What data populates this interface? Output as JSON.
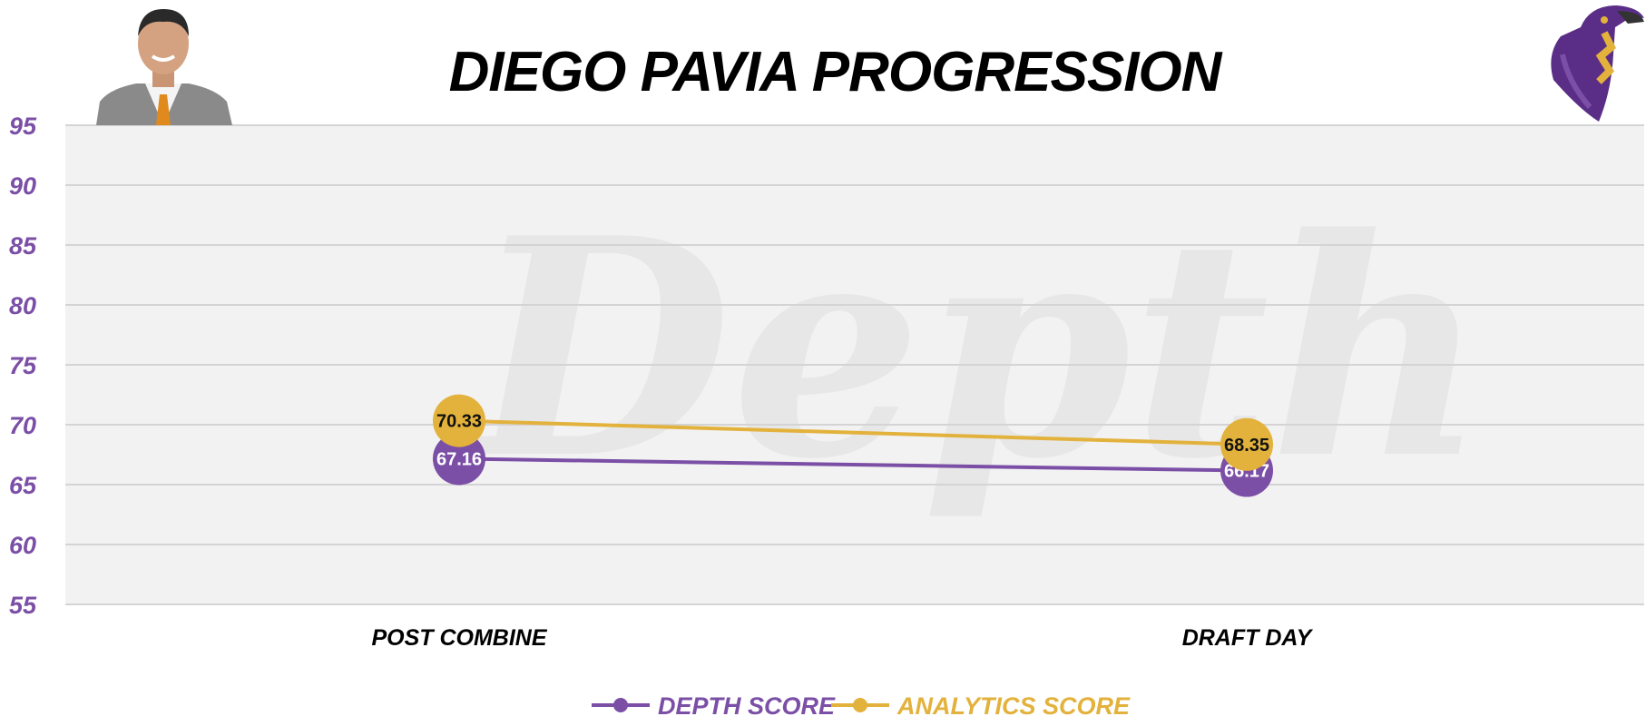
{
  "colors": {
    "depth": "#7b4fa6",
    "analytics": "#e3b23c",
    "plot_bg": "#f2f2f2",
    "grid": "#d4d4d4",
    "ytick": "#7b4fa6",
    "watermark": "#e5e5e5"
  },
  "icons": {
    "player_photo": "player-headshot",
    "team_logo": "raven-head-logo"
  },
  "watermark": "Depth",
  "chart_data": {
    "type": "line",
    "title": "DIEGO PAVIA PROGRESSION",
    "xlabel": "",
    "ylabel": "",
    "categories": [
      "POST COMBINE",
      "DRAFT DAY"
    ],
    "ylim": [
      55,
      95
    ],
    "yticks": [
      55,
      60,
      65,
      70,
      75,
      80,
      85,
      90,
      95
    ],
    "grid": true,
    "legend_position": "bottom-center",
    "series": [
      {
        "name": "DEPTH SCORE",
        "values": [
          67.16,
          66.17
        ],
        "labels": [
          "67.16",
          "66.17"
        ]
      },
      {
        "name": "ANALYTICS SCORE",
        "values": [
          70.33,
          68.35
        ],
        "labels": [
          "70.33",
          "68.35"
        ]
      }
    ]
  }
}
